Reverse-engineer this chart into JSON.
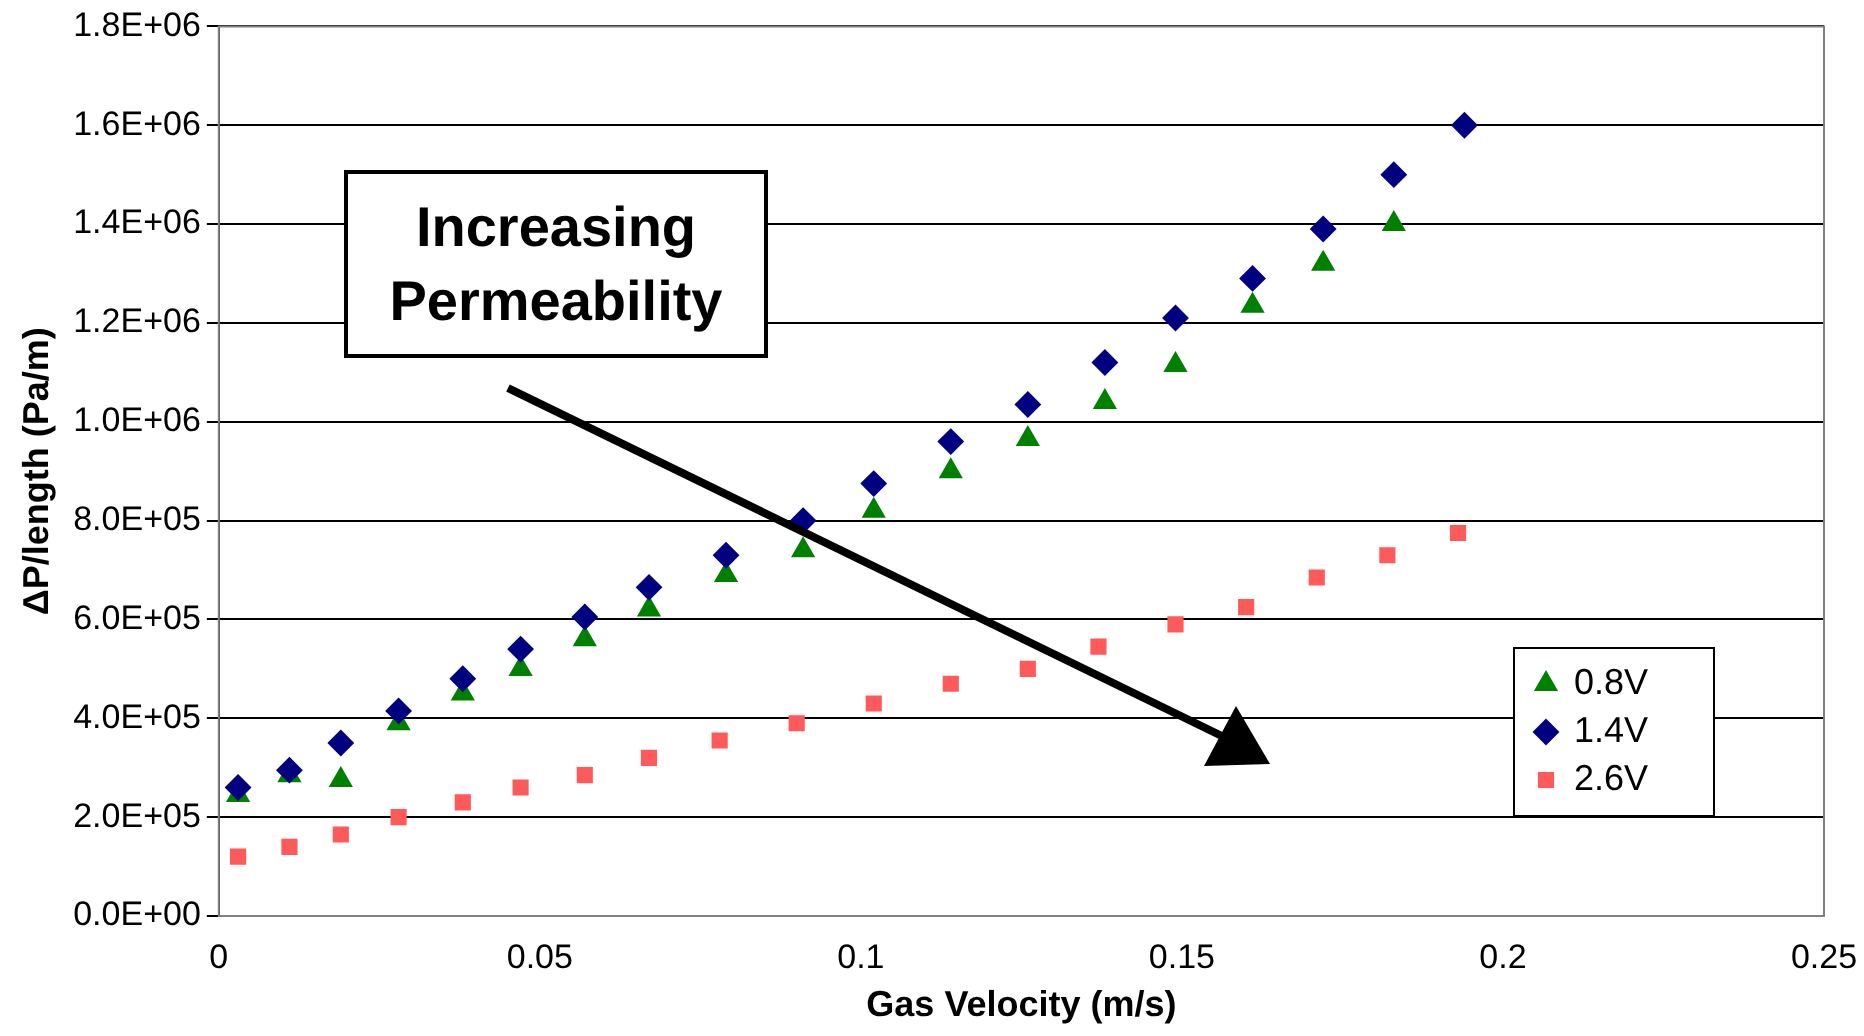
{
  "chart_data": {
    "type": "scatter",
    "xlabel": "Gas Velocity (m/s)",
    "ylabel": "ΔP/length (Pa/m)",
    "xlim": [
      0,
      0.25
    ],
    "xticks": [
      0,
      0.05,
      0.1,
      0.15,
      0.2,
      0.25
    ],
    "ylim": [
      0,
      1800000
    ],
    "yticks": [
      {
        "value": 0,
        "label": "0.0E+00"
      },
      {
        "value": 200000,
        "label": "2.0E+05"
      },
      {
        "value": 400000,
        "label": "4.0E+05"
      },
      {
        "value": 600000,
        "label": "6.0E+05"
      },
      {
        "value": 800000,
        "label": "8.0E+05"
      },
      {
        "value": 1000000,
        "label": "1.0E+06"
      },
      {
        "value": 1200000,
        "label": "1.2E+06"
      },
      {
        "value": 1400000,
        "label": "1.4E+06"
      },
      {
        "value": 1600000,
        "label": "1.6E+06"
      },
      {
        "value": 1800000,
        "label": "1.8E+06"
      }
    ],
    "grid": "y",
    "legend": "bottom right",
    "annotations": [
      "Increasing Permeability"
    ],
    "series": [
      {
        "name": "0.8V",
        "color": "#008000",
        "marker": "triangle",
        "x": [
          0.003,
          0.011,
          0.019,
          0.028,
          0.038,
          0.047,
          0.057,
          0.067,
          0.079,
          0.091,
          0.102,
          0.114,
          0.126,
          0.138,
          0.149,
          0.161,
          0.172,
          0.183
        ],
        "values": [
          245000,
          285000,
          275000,
          390000,
          450000,
          500000,
          560000,
          620000,
          690000,
          740000,
          820000,
          900000,
          965000,
          1040000,
          1115000,
          1235000,
          1320000,
          1400000
        ]
      },
      {
        "name": "1.4V",
        "color": "#000080",
        "marker": "diamond",
        "x": [
          0.003,
          0.011,
          0.019,
          0.028,
          0.038,
          0.047,
          0.057,
          0.067,
          0.079,
          0.091,
          0.102,
          0.114,
          0.126,
          0.138,
          0.149,
          0.161,
          0.172,
          0.183,
          0.194
        ],
        "values": [
          260000,
          295000,
          350000,
          415000,
          480000,
          540000,
          605000,
          665000,
          730000,
          800000,
          875000,
          960000,
          1035000,
          1120000,
          1210000,
          1290000,
          1390000,
          1500000,
          1600000
        ]
      },
      {
        "name": "2.6V",
        "color": "#ff5a5a",
        "marker": "square",
        "x": [
          0.003,
          0.011,
          0.019,
          0.028,
          0.038,
          0.047,
          0.057,
          0.067,
          0.078,
          0.09,
          0.102,
          0.114,
          0.126,
          0.137,
          0.149,
          0.16,
          0.171,
          0.182,
          0.193
        ],
        "values": [
          120000,
          140000,
          165000,
          200000,
          230000,
          260000,
          285000,
          320000,
          355000,
          390000,
          430000,
          470000,
          500000,
          545000,
          590000,
          625000,
          685000,
          730000,
          775000
        ]
      }
    ]
  }
}
